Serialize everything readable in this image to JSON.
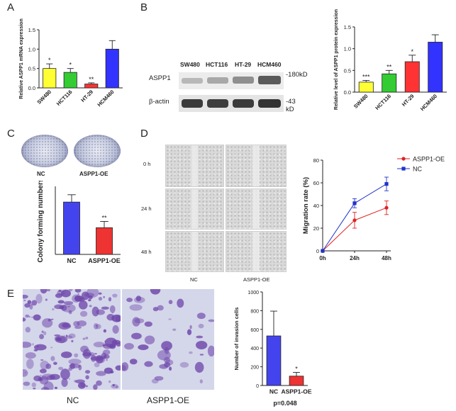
{
  "panels": {
    "A": "A",
    "B": "B",
    "C": "C",
    "D": "D",
    "E": "E"
  },
  "colors": {
    "yellow": "#ffff33",
    "green": "#33cc33",
    "red": "#ff3333",
    "blue": "#3333ff",
    "nc_line": "#2233cc",
    "oe_line": "#dd2222"
  },
  "blot": {
    "lanes": [
      "SW480",
      "HCT116",
      "HT-29",
      "HCM460"
    ],
    "rows": [
      "ASPP1",
      "β-actin"
    ],
    "sizes": [
      "-180kD",
      "-43 kD"
    ]
  },
  "colony": {
    "dish_labels": [
      "NC",
      "ASPP1-OE"
    ]
  },
  "migration_images": {
    "times": [
      "0 h",
      "24 h",
      "48 h"
    ],
    "groups": [
      "NC",
      "ASPP1-OE"
    ]
  },
  "invasion_images": {
    "labels": [
      "NC",
      "ASPP1-OE"
    ]
  },
  "chart_data": [
    {
      "id": "A",
      "type": "bar",
      "ylabel": "Relative ASPP1 mRNA expression",
      "categories": [
        "SW480",
        "HCT116",
        "HT-29",
        "HCM460"
      ],
      "values": [
        0.5,
        0.4,
        0.1,
        1.0
      ],
      "errors": [
        0.12,
        0.1,
        0.03,
        0.22
      ],
      "significance": [
        "*",
        "*",
        "**",
        ""
      ],
      "ylim": [
        0,
        1.5
      ],
      "yticks": [
        "0.0",
        "0.5",
        "1.0",
        "1.5"
      ],
      "colors": [
        "#ffff33",
        "#33cc33",
        "#ff3333",
        "#3333ff"
      ]
    },
    {
      "id": "B",
      "type": "bar",
      "ylabel": "Relative level of ASPP1 protein expression",
      "categories": [
        "SW480",
        "HCT116",
        "HT-29",
        "HCM460"
      ],
      "values": [
        0.23,
        0.42,
        0.7,
        1.15
      ],
      "errors": [
        0.04,
        0.08,
        0.15,
        0.17
      ],
      "significance": [
        "***",
        "**",
        "*",
        ""
      ],
      "ylim": [
        0,
        1.5
      ],
      "yticks": [
        "0.0",
        "0.5",
        "1.0",
        "1.5"
      ],
      "colors": [
        "#ffff33",
        "#33cc33",
        "#ff3333",
        "#3333ff"
      ]
    },
    {
      "id": "C",
      "type": "bar",
      "ylabel": "Colony forming numbers",
      "categories": [
        "NC",
        "ASPP1-OE"
      ],
      "values": [
        1.0,
        0.51
      ],
      "errors": [
        0.14,
        0.12
      ],
      "significance": [
        "",
        "**"
      ],
      "ylim": [
        0,
        1.3
      ],
      "colors": [
        "#4444ee",
        "#ee3333"
      ]
    },
    {
      "id": "D",
      "type": "line",
      "ylabel": "Migration rate (%)",
      "x": [
        "0h",
        "24h",
        "48h"
      ],
      "ylim": [
        0,
        80
      ],
      "yticks": [
        "0",
        "20",
        "40",
        "60",
        "80"
      ],
      "series": [
        {
          "name": "ASPP1-OE",
          "values": [
            0,
            27,
            38
          ],
          "errors": [
            0,
            7,
            6
          ],
          "color": "#dd2222",
          "marker": "circle"
        },
        {
          "name": "NC",
          "values": [
            0,
            42,
            59
          ],
          "errors": [
            0,
            4,
            6
          ],
          "color": "#2233cc",
          "marker": "square"
        }
      ]
    },
    {
      "id": "E",
      "type": "bar",
      "ylabel": "Number of invasion cells",
      "categories": [
        "NC",
        "ASPP1-OE"
      ],
      "values": [
        530,
        100
      ],
      "errors": [
        265,
        40
      ],
      "significance": [
        "",
        "*"
      ],
      "ylim": [
        0,
        1000
      ],
      "yticks": [
        "0",
        "200",
        "400",
        "600",
        "800",
        "1000"
      ],
      "colors": [
        "#4444ee",
        "#ee3333"
      ],
      "annotation": "p=0.048"
    }
  ]
}
